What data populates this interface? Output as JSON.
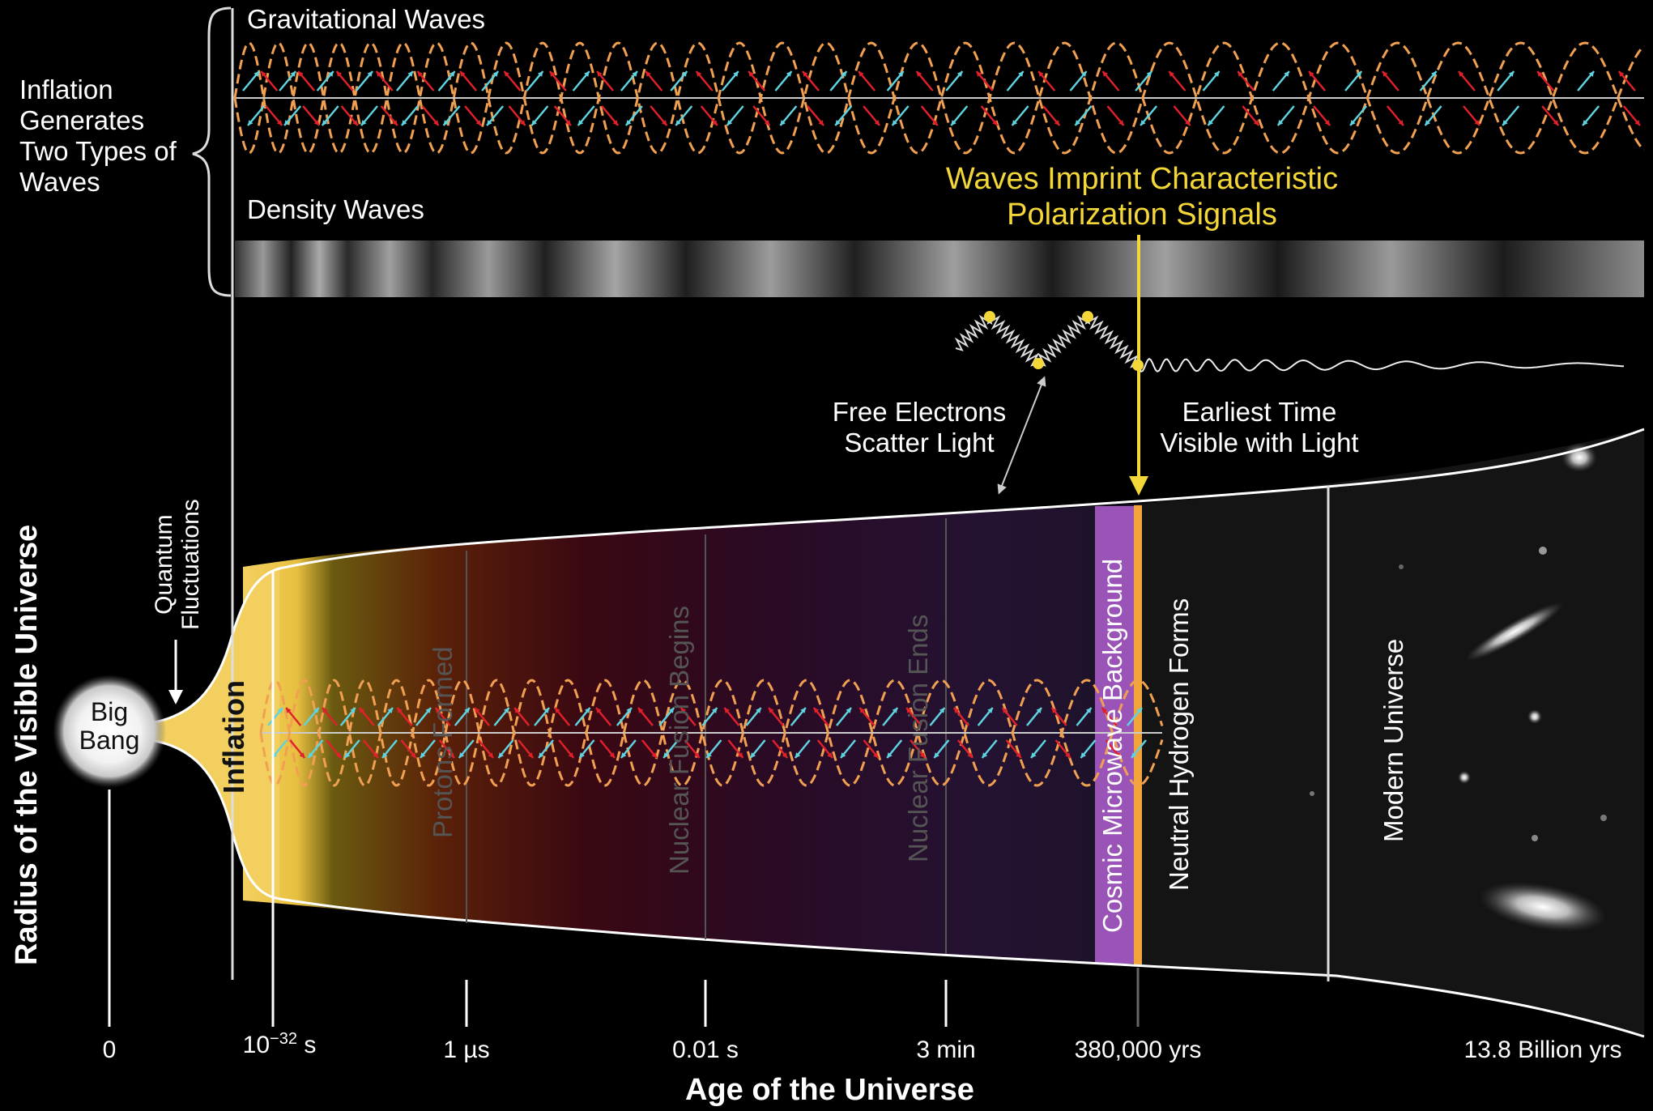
{
  "left_bracket_text": [
    "Inflation",
    "Generates",
    "Two Types of",
    "Waves"
  ],
  "gravitational_label": "Gravitational Waves",
  "density_label": "Density Waves",
  "polarization_label": [
    "Waves Imprint Characteristic",
    "Polarization Signals"
  ],
  "free_electrons_label": [
    "Free Electrons",
    "Scatter Light"
  ],
  "earliest_time_label": [
    "Earliest Time",
    "Visible with Light"
  ],
  "y_axis_title": "Radius of the Visible Universe",
  "x_axis_title": "Age of the Universe",
  "quantum_label": [
    "Quantum",
    "Fluctuations"
  ],
  "big_bang_label": [
    "Big",
    "Bang"
  ],
  "eras": {
    "inflation": "Inflation",
    "protons": "Protons Formed",
    "nuclear_begins": "Nuclear Fusion Begins",
    "nuclear_ends": "Nuclear Fusion Ends",
    "cmb": "Cosmic Microwave Background",
    "neutral_h": "Neutral Hydrogen Forms",
    "modern": "Modern Universe"
  },
  "ticks": {
    "t0": "0",
    "t1_base": "10",
    "t1_exp": "−32",
    "t1_unit": "s",
    "t2": "1 µs",
    "t3": "0.01 s",
    "t4": "3 min",
    "t5": "380,000 yrs",
    "t6": "13.8 Billion yrs"
  },
  "colors": {
    "yellow": "#f3d637",
    "orange_wave": "#f0a050",
    "cyan_arrow": "#5fd4e0",
    "red_arrow": "#e0202a",
    "cmb_purple": "#9a54b8",
    "cmb_orange": "#f2a33a"
  }
}
